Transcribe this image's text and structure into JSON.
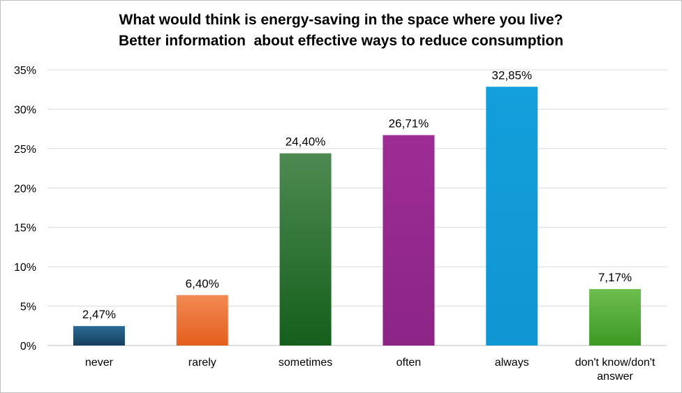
{
  "chart_data": {
    "type": "bar",
    "title_lines": [
      "What would think is energy-saving in the space where you live?",
      "Better information  about effective ways to reduce consumption"
    ],
    "categories": [
      "never",
      "rarely",
      "sometimes",
      "often",
      "always",
      "don't know/don't answer"
    ],
    "values": [
      2.47,
      6.4,
      24.4,
      26.71,
      32.85,
      7.17
    ],
    "data_labels": [
      "2,47%",
      "6,40%",
      "24,40%",
      "26,71%",
      "32,85%",
      "7,17%"
    ],
    "category_label_lines": [
      [
        "never"
      ],
      [
        "rarely"
      ],
      [
        "sometimes"
      ],
      [
        "often"
      ],
      [
        "always"
      ],
      [
        "don't know/don't",
        "answer"
      ]
    ],
    "bar_colors": [
      [
        "#2a6a96",
        "#163f5c"
      ],
      [
        "#f28a54",
        "#e45e1c"
      ],
      [
        "#4e8a52",
        "#145f1b"
      ],
      [
        "#9d2d95",
        "#8c2486"
      ],
      [
        "#139fdb",
        "#1096d2"
      ],
      [
        "#6ebd50",
        "#3c9a23"
      ]
    ],
    "yticks": [
      0,
      5,
      10,
      15,
      20,
      25,
      30,
      35
    ],
    "ytick_labels": [
      "0%",
      "5%",
      "10%",
      "15%",
      "20%",
      "25%",
      "30%",
      "35%"
    ],
    "ylim": [
      0,
      35
    ],
    "grid": true,
    "xlabel": "",
    "ylabel": "",
    "legend": "none"
  }
}
